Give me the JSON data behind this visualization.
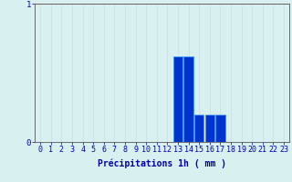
{
  "hours": [
    0,
    1,
    2,
    3,
    4,
    5,
    6,
    7,
    8,
    9,
    10,
    11,
    12,
    13,
    14,
    15,
    16,
    17,
    18,
    19,
    20,
    21,
    22,
    23
  ],
  "values": [
    0,
    0,
    0,
    0,
    0,
    0,
    0,
    0,
    0,
    0,
    0,
    0,
    0,
    0.62,
    0.62,
    0.2,
    0.2,
    0.2,
    0,
    0,
    0,
    0,
    0,
    0
  ],
  "bar_color": "#0033cc",
  "bar_edge_color": "#3399ff",
  "background_color": "#d8f0f0",
  "grid_color_v": "#c8e0e0",
  "grid_color_h": "#ff9999",
  "axis_color": "#555555",
  "text_color": "#0000aa",
  "xlabel": "Précipitations 1h ( mm )",
  "ylim": [
    0,
    1.0
  ],
  "yticks": [
    0,
    1
  ],
  "xlabel_fontsize": 7.0,
  "tick_fontsize": 6.0,
  "bar_width": 0.9
}
